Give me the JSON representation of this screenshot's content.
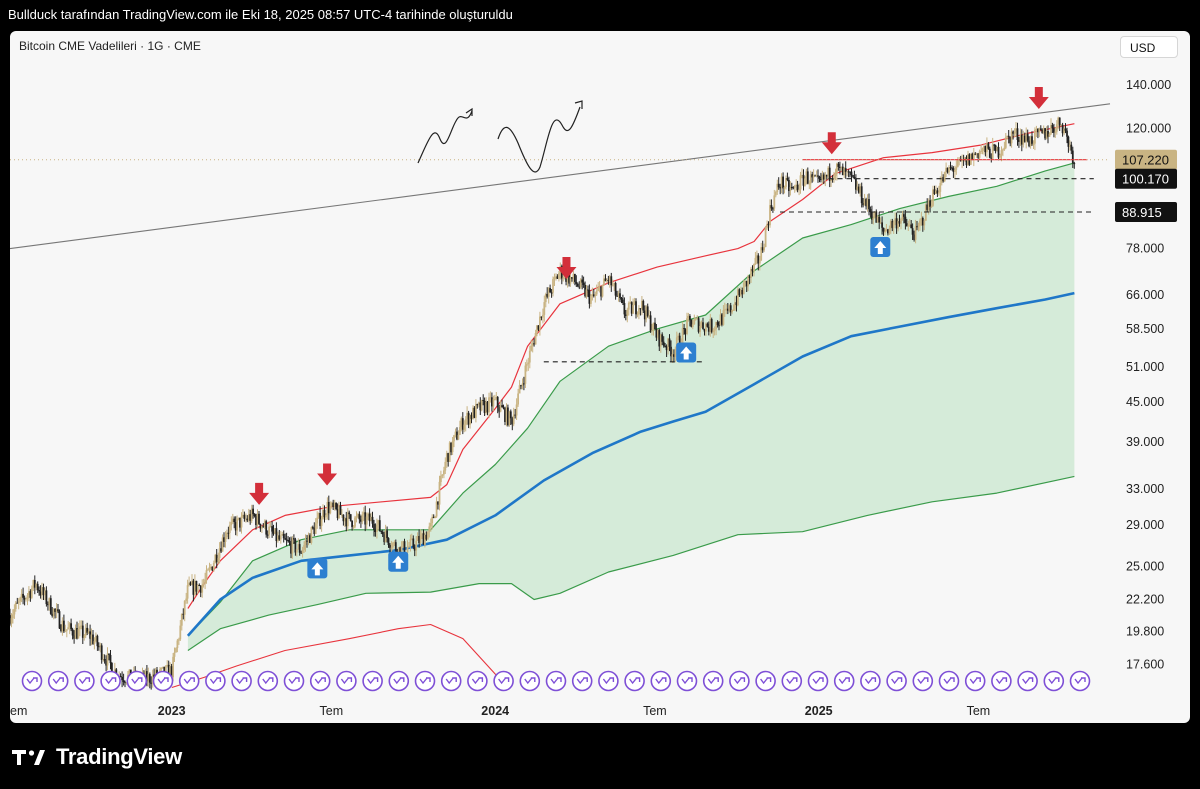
{
  "header": {
    "title": "Bullduck tarafından TradingView.com ile Eki 18, 2025 08:57 UTC-4 tarihinde oluşturuldu"
  },
  "chart_data": {
    "type": "line",
    "title": "Bitcoin CME Vadelileri · 1G · CME",
    "currency": "USD",
    "y_scale": "log",
    "ylim": [
      16000,
      170000
    ],
    "y_ticks": [
      "140.000",
      "120.000",
      "78.000",
      "66.000",
      "58.500",
      "51.000",
      "45.000",
      "39.000",
      "33.000",
      "29.000",
      "25.000",
      "22.200",
      "19.800",
      "17.600"
    ],
    "y_tick_values": [
      140000,
      120000,
      78000,
      66000,
      58500,
      51000,
      45000,
      39000,
      33000,
      29000,
      25000,
      22200,
      19800,
      17600
    ],
    "x_ticks": [
      "em",
      "2023",
      "Tem",
      "2024",
      "Tem",
      "2025",
      "Tem"
    ],
    "x_tick_bold": [
      false,
      true,
      false,
      true,
      false,
      true,
      false
    ],
    "x_tick_time": [
      2022.5,
      2023.0,
      2023.5,
      2024.0,
      2024.5,
      2025.0,
      2025.5
    ],
    "xlim": [
      2022.5,
      2025.9
    ],
    "price_labels": [
      {
        "text": "107.220",
        "value": 107220,
        "style": "last"
      },
      {
        "text": "100.170",
        "value": 100170,
        "style": "dark"
      },
      {
        "text": "88.915",
        "value": 88915,
        "style": "dark"
      }
    ],
    "series": [
      {
        "name": "Fiyat",
        "color": "#444444",
        "t": [
          2022.5,
          2022.58,
          2022.67,
          2022.75,
          2022.83,
          2022.9,
          2022.97,
          2023.0,
          2023.05,
          2023.1,
          2023.17,
          2023.25,
          2023.33,
          2023.4,
          2023.48,
          2023.55,
          2023.62,
          2023.7,
          2023.75,
          2023.8,
          2023.85,
          2023.9,
          2023.95,
          2024.0,
          2024.05,
          2024.1,
          2024.15,
          2024.2,
          2024.25,
          2024.3,
          2024.35,
          2024.4,
          2024.45,
          2024.5,
          2024.55,
          2024.6,
          2024.67,
          2024.72,
          2024.77,
          2024.82,
          2024.85,
          2024.88,
          2024.92,
          2024.96,
          2025.0,
          2025.05,
          2025.1,
          2025.15,
          2025.2,
          2025.25,
          2025.3,
          2025.35,
          2025.4,
          2025.45,
          2025.5,
          2025.55,
          2025.6,
          2025.65,
          2025.7,
          2025.75,
          2025.79
        ],
        "values": [
          21000,
          23500,
          20000,
          19500,
          17000,
          16600,
          17000,
          17200,
          23000,
          23500,
          28500,
          30000,
          27500,
          26500,
          31000,
          29500,
          29500,
          26500,
          27000,
          28500,
          37000,
          42000,
          44000,
          45000,
          42000,
          52000,
          64000,
          72000,
          69000,
          65000,
          70000,
          62000,
          64000,
          57000,
          54000,
          60000,
          59000,
          62000,
          68000,
          76000,
          90000,
          99000,
          96000,
          101000,
          98000,
          104000,
          100000,
          91000,
          83000,
          87000,
          82000,
          94000,
          103000,
          106000,
          111000,
          110000,
          118000,
          115000,
          118000,
          123000,
          107220
        ]
      },
      {
        "name": "Bant üst (kırmızı)",
        "color": "#e8343d",
        "t": [
          2023.05,
          2023.1,
          2023.15,
          2023.25,
          2023.35,
          2023.5,
          2023.65,
          2023.8,
          2023.85,
          2023.9,
          2024.0,
          2024.05,
          2024.1,
          2024.2,
          2024.35,
          2024.5,
          2024.65,
          2024.75,
          2024.8,
          2024.85,
          2024.95,
          2025.05,
          2025.2,
          2025.35,
          2025.5,
          2025.65,
          2025.79
        ],
        "values": [
          21500,
          23500,
          25500,
          28500,
          30000,
          31000,
          31500,
          32000,
          33500,
          38000,
          44000,
          47500,
          55000,
          64000,
          69000,
          73000,
          76000,
          78000,
          80000,
          86000,
          93000,
          102000,
          108000,
          110000,
          113000,
          118000,
          122000
        ]
      },
      {
        "name": "Bant üst (yeşil)",
        "color": "#3a9b4a",
        "t": [
          2023.05,
          2023.15,
          2023.25,
          2023.4,
          2023.55,
          2023.7,
          2023.8,
          2023.9,
          2024.0,
          2024.1,
          2024.2,
          2024.35,
          2024.5,
          2024.65,
          2024.8,
          2024.95,
          2025.1,
          2025.25,
          2025.4,
          2025.55,
          2025.7,
          2025.79
        ],
        "values": [
          19500,
          22000,
          25500,
          27500,
          28500,
          28500,
          28500,
          32500,
          36000,
          41000,
          48500,
          55000,
          58500,
          61500,
          72000,
          81000,
          85000,
          90000,
          94000,
          97500,
          103000,
          106000
        ]
      },
      {
        "name": "Bant alt (yeşil)",
        "color": "#3a9b4a",
        "t": [
          2023.05,
          2023.15,
          2023.3,
          2023.45,
          2023.6,
          2023.8,
          2023.95,
          2024.05,
          2024.12,
          2024.2,
          2024.35,
          2024.55,
          2024.75,
          2024.95,
          2025.15,
          2025.35,
          2025.55,
          2025.79
        ],
        "values": [
          18500,
          20000,
          21000,
          21800,
          22700,
          22800,
          23500,
          23500,
          22200,
          22700,
          24500,
          26000,
          28000,
          28300,
          30000,
          31500,
          32500,
          34500
        ]
      },
      {
        "name": "Hareketli ortalama (mavi)",
        "color": "#1f77c8",
        "t": [
          2023.05,
          2023.15,
          2023.25,
          2023.4,
          2023.55,
          2023.7,
          2023.85,
          2024.0,
          2024.15,
          2024.3,
          2024.45,
          2024.55,
          2024.65,
          2024.8,
          2024.95,
          2025.1,
          2025.25,
          2025.4,
          2025.55,
          2025.7,
          2025.79
        ],
        "values": [
          19500,
          22200,
          24000,
          25500,
          26000,
          26500,
          27500,
          30000,
          34000,
          37500,
          40500,
          42000,
          43500,
          48000,
          53000,
          57000,
          59000,
          61000,
          63000,
          65000,
          66500
        ]
      },
      {
        "name": "Alt bant (kırmızı)",
        "color": "#e8343d",
        "t": [
          2023.0,
          2023.1,
          2023.2,
          2023.35,
          2023.55,
          2023.7,
          2023.8,
          2023.9,
          2024.0,
          2024.03
        ],
        "values": [
          16200,
          16800,
          17500,
          18500,
          19300,
          20000,
          20300,
          19300,
          17000,
          16400
        ]
      },
      {
        "name": "Trend çizgisi",
        "color": "#777777",
        "t": [
          2022.5,
          2025.9
        ],
        "values": [
          78000,
          131000
        ]
      }
    ],
    "horizontal_levels": [
      {
        "value": 107220,
        "t_start": 2024.95,
        "t_end": 2025.83,
        "style": "solid-red"
      },
      {
        "value": 100170,
        "t_start": 2025.03,
        "t_end": 2025.85,
        "style": "dashed"
      },
      {
        "value": 88915,
        "t_start": 2024.88,
        "t_end": 2025.85,
        "style": "dashed"
      },
      {
        "value": 52000,
        "t_start": 2024.15,
        "t_end": 2024.65,
        "style": "dashed"
      }
    ],
    "annotations": {
      "down_arrows": [
        {
          "t": 2023.27
        },
        {
          "t": 2023.48
        },
        {
          "t": 2024.22
        },
        {
          "t": 2025.04
        },
        {
          "t": 2025.68
        }
      ],
      "up_badges": [
        {
          "t": 2023.45
        },
        {
          "t": 2023.7
        },
        {
          "t": 2024.59
        },
        {
          "t": 2025.19
        }
      ]
    }
  }
}
